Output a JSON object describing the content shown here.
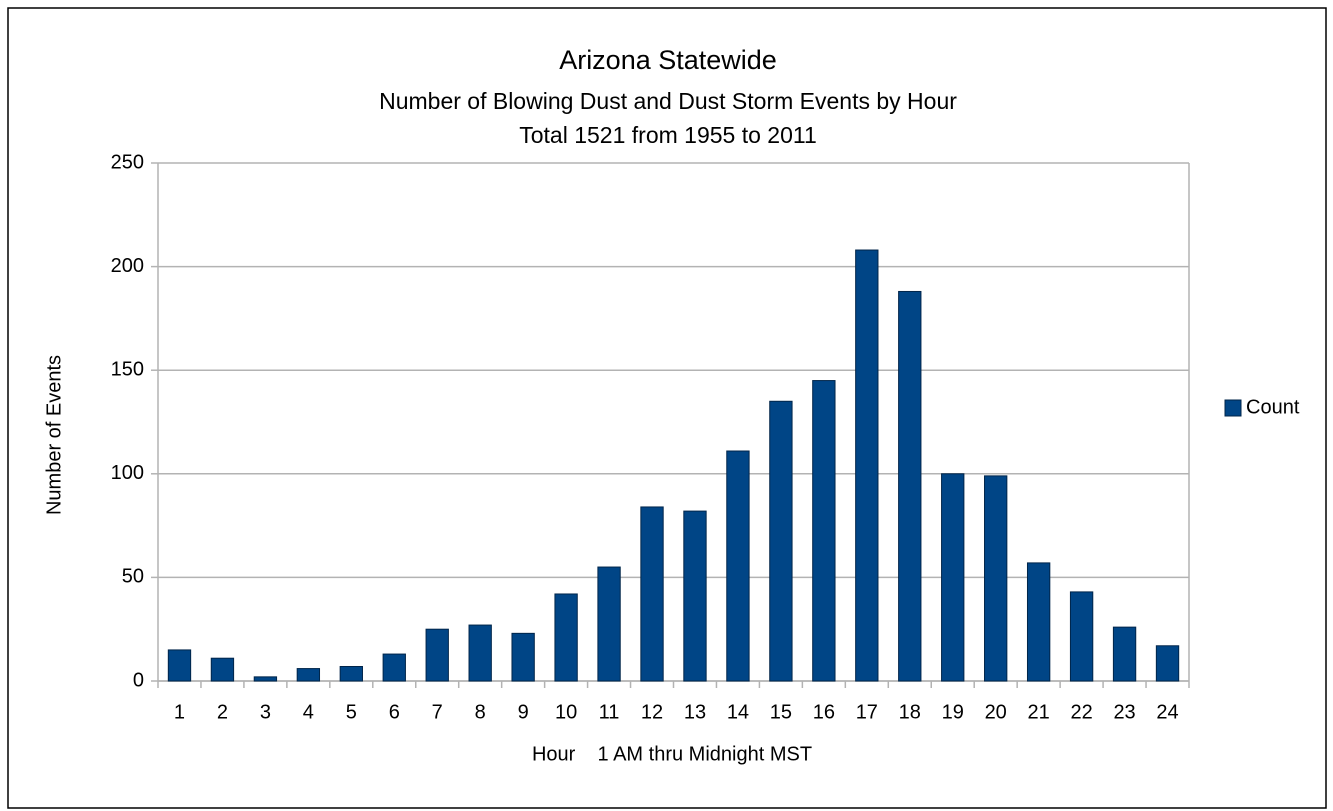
{
  "chart_data": {
    "type": "bar",
    "title": "Arizona Statewide",
    "subtitle": [
      "Number of Blowing Dust and Dust Storm Events by Hour",
      "Total 1521 from 1955 to 2011"
    ],
    "x_label": "Hour    1 AM thru Midnight MST",
    "y_label": "Number of Events",
    "categories": [
      "1",
      "2",
      "3",
      "4",
      "5",
      "6",
      "7",
      "8",
      "9",
      "10",
      "11",
      "12",
      "13",
      "14",
      "15",
      "16",
      "17",
      "18",
      "19",
      "20",
      "21",
      "22",
      "23",
      "24"
    ],
    "series": [
      {
        "name": "Count",
        "color": "#004586",
        "values": [
          15,
          11,
          2,
          6,
          7,
          13,
          25,
          27,
          23,
          42,
          55,
          84,
          82,
          111,
          135,
          145,
          208,
          188,
          100,
          99,
          57,
          43,
          26,
          17
        ]
      }
    ],
    "ylim": [
      0,
      250
    ],
    "yticks": [
      0,
      50,
      100,
      150,
      200,
      250
    ],
    "grid": true,
    "legend": "right"
  }
}
